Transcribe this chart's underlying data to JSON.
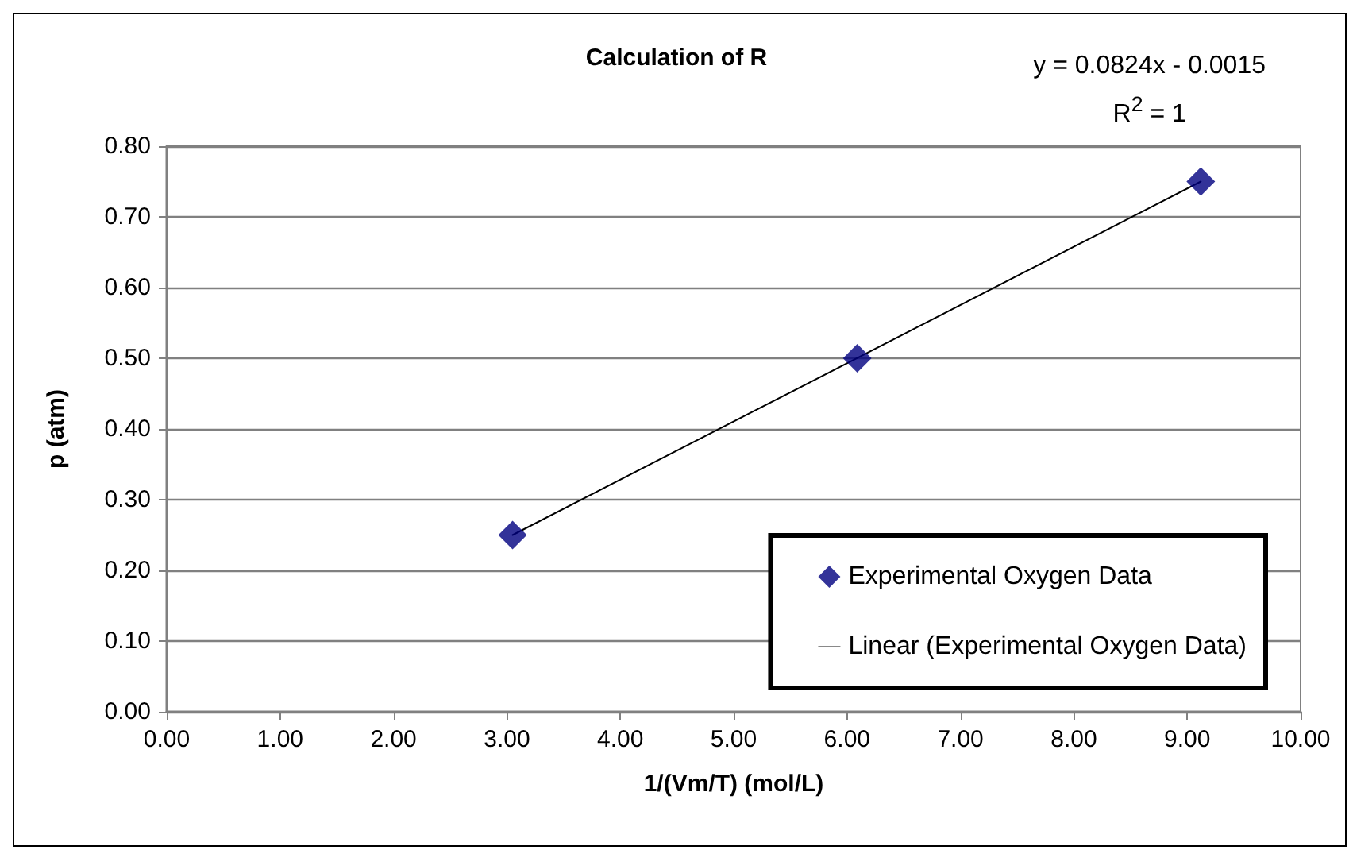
{
  "chart_data": {
    "type": "scatter",
    "title": "Calculation of R",
    "xlabel": "1/(Vm/T) (mol/L)",
    "ylabel": "p (atm)",
    "annotations": [
      "y = 0.0824x - 0.0015",
      "R$^{2}$ = 1"
    ],
    "x": [
      3.05,
      6.09,
      9.12
    ],
    "series": [
      {
        "name": "Experimental Oxygen Data",
        "color": "#000080",
        "values": [
          0.25,
          0.5,
          0.75
        ],
        "marker": "diamond"
      },
      {
        "name": "Linear (Experimental Oxygen Data)",
        "type": "line",
        "color": "#000000",
        "x": [
          3.05,
          9.12
        ],
        "values": [
          0.25,
          0.75
        ],
        "marker": "none",
        "line_style": "solid"
      }
    ],
    "xlim": [
      0,
      10
    ],
    "xticks": [
      {
        "value": 0,
        "label": "0.00"
      },
      {
        "value": 1,
        "label": "1.00"
      },
      {
        "value": 2,
        "label": "2.00"
      },
      {
        "value": 3,
        "label": "3.00"
      },
      {
        "value": 4,
        "label": "4.00"
      },
      {
        "value": 5,
        "label": "5.00"
      },
      {
        "value": 6,
        "label": "6.00"
      },
      {
        "value": 7,
        "label": "7.00"
      },
      {
        "value": 8,
        "label": "8.00"
      },
      {
        "value": 9,
        "label": "9.00"
      },
      {
        "value": 10,
        "label": "10.00"
      }
    ],
    "ylim": [
      0,
      0.8
    ],
    "yticks": [
      {
        "value": 0,
        "label": "0.00"
      },
      {
        "value": 0.1,
        "label": "0.10"
      },
      {
        "value": 0.2,
        "label": "0.20"
      },
      {
        "value": 0.3,
        "label": "0.30"
      },
      {
        "value": 0.4,
        "label": "0.40"
      },
      {
        "value": 0.5,
        "label": "0.50"
      },
      {
        "value": 0.6,
        "label": "0.60"
      },
      {
        "value": 0.7,
        "label": "0.70"
      },
      {
        "value": 0.8,
        "label": "0.80"
      }
    ],
    "grid": "y",
    "legend": "bottom right"
  }
}
